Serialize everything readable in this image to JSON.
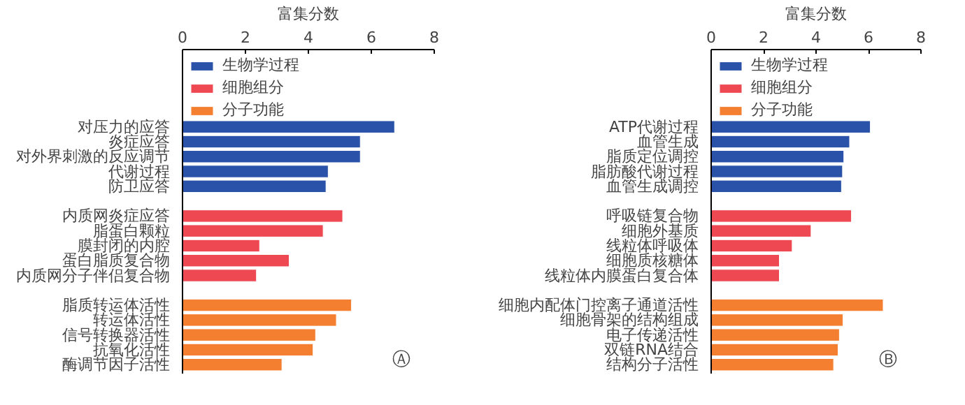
{
  "chart_data": [
    {
      "type": "bar",
      "orientation": "horizontal",
      "xlabel": "富集分数",
      "xlim": [
        0,
        8
      ],
      "xticks": [
        0,
        2,
        4,
        6,
        8
      ],
      "grid": false,
      "legend": "top left",
      "annotations": [
        "Ⓐ"
      ],
      "categories": [
        "对压力的应答",
        "炎症应答",
        "对外界刺激的反应调节",
        "代谢过程",
        "防卫应答",
        null,
        "内质网炎症应答",
        "脂蛋白颗粒",
        "膜封闭的内腔",
        "蛋白脂质复合物",
        "内质网分子伴侣复合物",
        null,
        "脂质转运体活性",
        "转运体活性",
        "信号转换器活性",
        "抗氧化活性",
        "酶调节因子活性"
      ],
      "series": [
        {
          "name": "生物学过程",
          "color": "#2a52a8",
          "values": [
            6.74,
            5.65,
            5.65,
            4.63,
            4.56,
            null,
            null,
            null,
            null,
            null,
            null,
            null,
            null,
            null,
            null,
            null,
            null
          ]
        },
        {
          "name": "细胞组分",
          "color": "#ee4852",
          "values": [
            null,
            null,
            null,
            null,
            null,
            null,
            5.09,
            4.47,
            2.45,
            3.39,
            2.35,
            null,
            null,
            null,
            null,
            null,
            null
          ]
        },
        {
          "name": "分子功能",
          "color": "#f47f30",
          "values": [
            null,
            null,
            null,
            null,
            null,
            null,
            null,
            null,
            null,
            null,
            null,
            null,
            5.37,
            4.89,
            4.23,
            4.15,
            3.16
          ]
        }
      ]
    },
    {
      "type": "bar",
      "orientation": "horizontal",
      "xlabel": "富集分数",
      "xlim": [
        0,
        8
      ],
      "xticks": [
        0,
        2,
        4,
        6,
        8
      ],
      "grid": false,
      "legend": "top left",
      "annotations": [
        "Ⓑ"
      ],
      "categories": [
        "ATP代谢过程",
        "血管生成",
        "脂质定位调控",
        "脂肪酸代谢过程",
        "血管生成调控",
        null,
        "呼吸链复合物",
        "细胞外基质",
        "线粒体呼吸体",
        "细胞质核糖体",
        "线粒体内膜蛋白复合体",
        null,
        "细胞内配体门控离子通道活性",
        "细胞骨架的结构组成",
        "电子传递活性",
        "双链RNA结合",
        "结构分子活性"
      ],
      "series": [
        {
          "name": "生物学过程",
          "color": "#2a52a8",
          "values": [
            6.07,
            5.28,
            5.06,
            5.01,
            4.97,
            null,
            null,
            null,
            null,
            null,
            null,
            null,
            null,
            null,
            null,
            null,
            null
          ]
        },
        {
          "name": "细胞组分",
          "color": "#ee4852",
          "values": [
            null,
            null,
            null,
            null,
            null,
            null,
            5.35,
            3.81,
            3.09,
            2.6,
            2.6,
            null,
            null,
            null,
            null,
            null,
            null
          ]
        },
        {
          "name": "分子功能",
          "color": "#f47f30",
          "values": [
            null,
            null,
            null,
            null,
            null,
            null,
            null,
            null,
            null,
            null,
            null,
            null,
            6.56,
            5.03,
            4.89,
            4.84,
            4.67
          ]
        }
      ]
    }
  ]
}
